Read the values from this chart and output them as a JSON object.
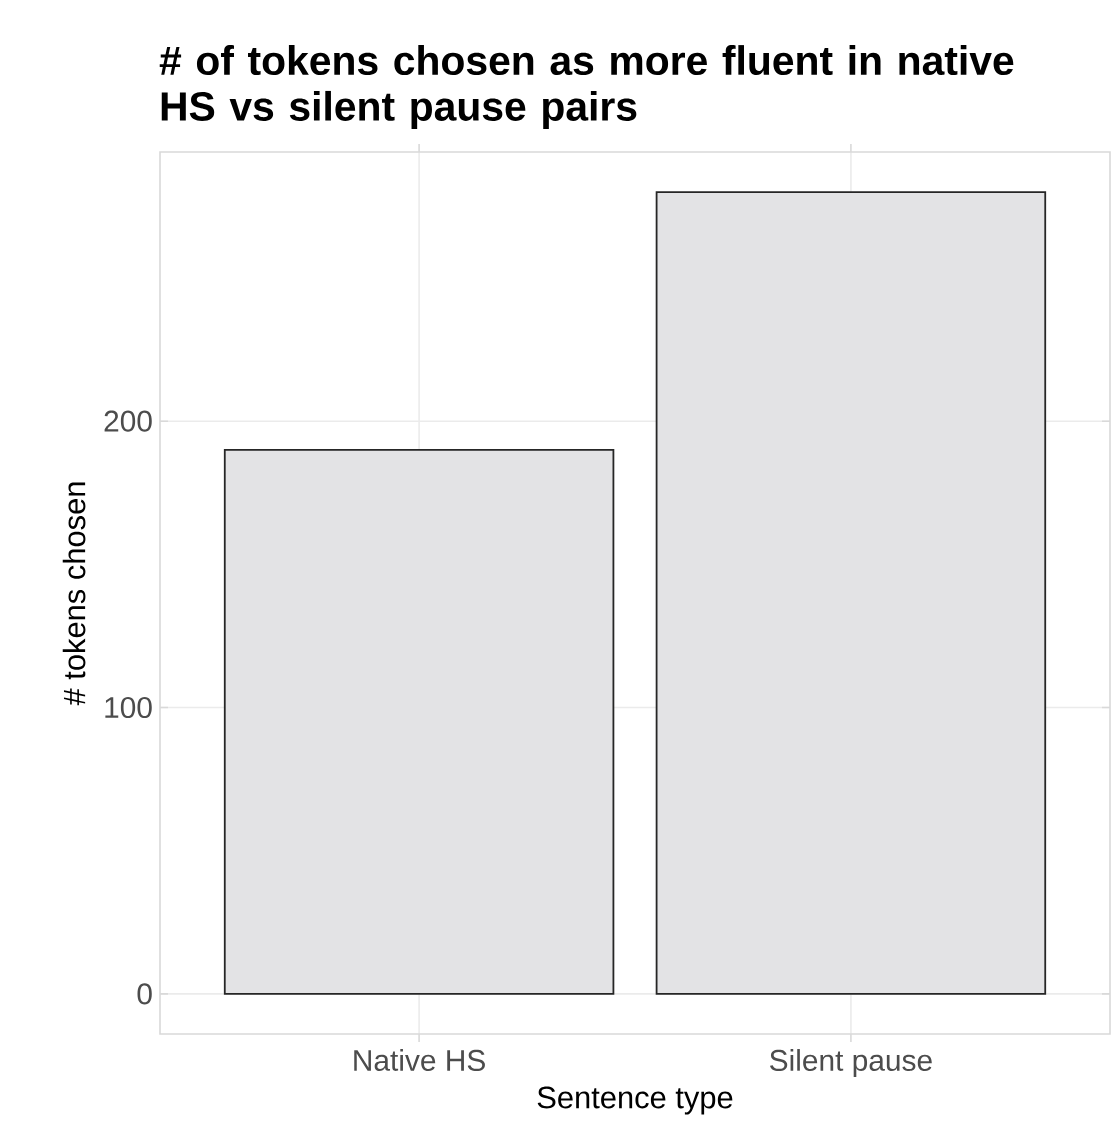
{
  "chart_data": {
    "type": "bar",
    "title": "# of tokens chosen as more fluent in native HS vs silent pause pairs",
    "xlabel": "Sentence type",
    "ylabel": "# tokens chosen",
    "categories": [
      "Native HS",
      "Silent pause"
    ],
    "values": [
      190,
      280
    ],
    "color": "#e3e3e5",
    "ylim": [
      -14,
      294
    ],
    "yticks": [
      0,
      100,
      200
    ],
    "grid": true
  }
}
